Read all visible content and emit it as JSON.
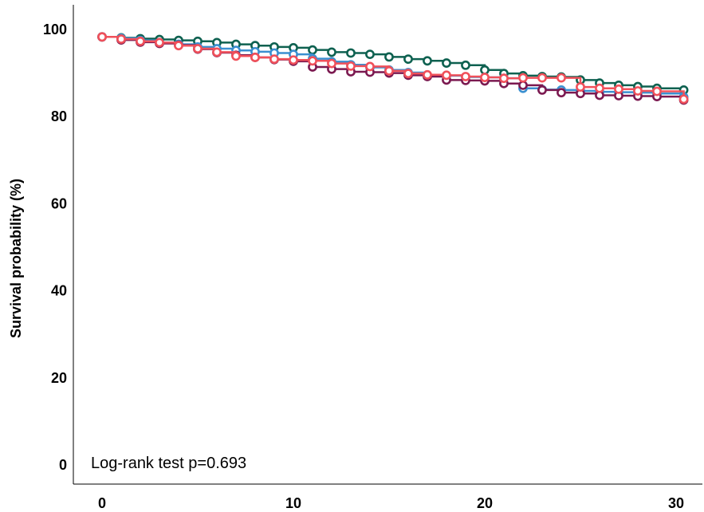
{
  "chart_data": {
    "type": "line",
    "title": "",
    "xlabel": "",
    "ylabel": "Survival probability (%)",
    "xlim": [
      0,
      30.5
    ],
    "ylim": [
      -2,
      106
    ],
    "xticks": [
      0,
      10,
      20,
      30
    ],
    "yticks": [
      0,
      20,
      40,
      60,
      80,
      100
    ],
    "grid": false,
    "legend": "none",
    "annotation": "Log-rank test p=0.693",
    "series": [
      {
        "color": "#0e6150",
        "x": [
          0,
          1,
          2,
          3,
          4,
          5,
          6,
          7,
          8,
          9,
          10,
          11,
          12,
          13,
          14,
          15,
          16,
          17,
          18,
          19,
          20,
          21,
          22,
          23,
          24,
          25,
          26,
          27,
          28,
          29,
          30.4
        ],
        "y": [
          98.3,
          98.1,
          97.9,
          97.7,
          97.5,
          97.3,
          97.0,
          96.6,
          96.3,
          96.0,
          95.8,
          95.3,
          94.8,
          94.6,
          94.3,
          93.7,
          93.2,
          92.8,
          92.3,
          91.8,
          90.7,
          89.9,
          89.4,
          89.2,
          89.1,
          88.4,
          87.7,
          87.2,
          86.9,
          86.5,
          86.1
        ]
      },
      {
        "color": "#3a8fd0",
        "x": [
          0,
          1,
          2,
          3,
          4,
          5,
          6,
          7,
          8,
          9,
          10,
          11,
          12,
          13,
          14,
          15,
          16,
          17,
          18,
          19,
          20,
          21,
          22,
          23,
          24,
          25,
          26,
          27,
          28,
          29,
          30.4
        ],
        "y": [
          98.3,
          98.0,
          97.5,
          97.0,
          96.6,
          96.0,
          95.6,
          95.2,
          94.9,
          94.6,
          94.3,
          93.3,
          92.6,
          91.9,
          91.3,
          90.7,
          90.1,
          89.4,
          89.4,
          89.1,
          89.0,
          88.8,
          86.5,
          86.2,
          86.1,
          85.9,
          85.7,
          85.6,
          85.5,
          85.3,
          84.5
        ]
      },
      {
        "color": "#7b1950",
        "x": [
          0,
          1,
          2,
          3,
          4,
          5,
          6,
          7,
          8,
          9,
          10,
          11,
          12,
          13,
          14,
          15,
          16,
          17,
          18,
          19,
          20,
          21,
          22,
          23,
          24,
          25,
          26,
          27,
          28,
          29,
          30.4
        ],
        "y": [
          98.3,
          97.6,
          97.1,
          96.8,
          96.4,
          95.5,
          94.7,
          94.1,
          93.6,
          93.1,
          92.7,
          91.4,
          90.9,
          90.3,
          90.2,
          90.0,
          89.5,
          89.2,
          88.4,
          88.3,
          88.2,
          87.6,
          87.2,
          86.1,
          85.5,
          85.3,
          84.9,
          84.8,
          84.7,
          84.6,
          83.8
        ]
      },
      {
        "color": "#f0505a",
        "x": [
          0,
          1,
          2,
          3,
          4,
          5,
          6,
          7,
          8,
          9,
          10,
          11,
          12,
          13,
          14,
          15,
          16,
          17,
          18,
          19,
          20,
          21,
          22,
          23,
          24,
          25,
          26,
          27,
          28,
          29,
          30.4
        ],
        "y": [
          98.3,
          97.8,
          97.3,
          97.0,
          96.3,
          95.6,
          94.8,
          93.9,
          93.6,
          93.2,
          93.0,
          92.8,
          92.2,
          91.6,
          91.5,
          90.5,
          89.9,
          89.6,
          89.5,
          89.2,
          89.0,
          88.8,
          88.9,
          88.9,
          88.9,
          86.8,
          86.5,
          86.3,
          85.9,
          85.8,
          84.0
        ]
      }
    ]
  }
}
